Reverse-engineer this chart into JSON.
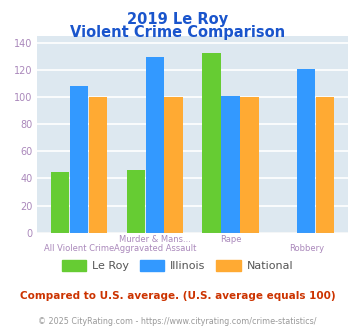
{
  "title_line1": "2019 Le Roy",
  "title_line2": "Violent Crime Comparison",
  "series": {
    "Le Roy": [
      45,
      46,
      133,
      0
    ],
    "Illinois": [
      108,
      130,
      101,
      121
    ],
    "National": [
      100,
      100,
      100,
      100
    ]
  },
  "colors": {
    "Le Roy": "#66cc33",
    "Illinois": "#3399ff",
    "National": "#ffaa33"
  },
  "ylim": [
    0,
    145
  ],
  "yticks": [
    0,
    20,
    40,
    60,
    80,
    100,
    120,
    140
  ],
  "plot_bg": "#dde8f0",
  "grid_color": "#ffffff",
  "title_color": "#1a55cc",
  "axis_label_color": "#aa88bb",
  "subtitle_color": "#cc3300",
  "footer_color": "#999999",
  "subtitle_text": "Compared to U.S. average. (U.S. average equals 100)",
  "footer_text": "© 2025 CityRating.com - https://www.cityrating.com/crime-statistics/",
  "top_labels": [
    "",
    "Murder & Mans...",
    "Rape",
    ""
  ],
  "bot_labels": [
    "All Violent Crime",
    "Aggravated Assault",
    "",
    "Robbery"
  ]
}
